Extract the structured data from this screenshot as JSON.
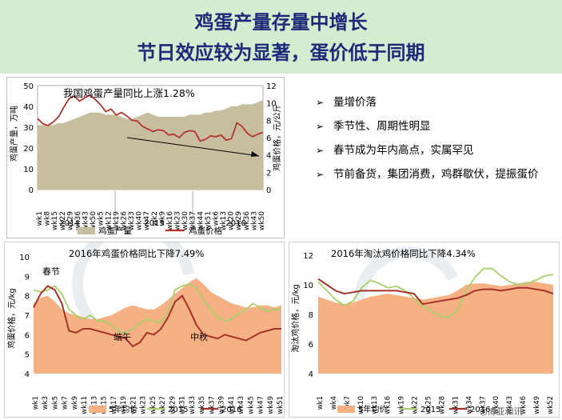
{
  "slide": {
    "title_line1": "鸡蛋产量存量中增长",
    "title_line2": "节日效应较为显著，蛋价低于同期"
  },
  "bullets": [
    "量增价落",
    "季节性、周期性明显",
    "春节成为年内高点，实属罕见",
    "节前备货，集团消费，鸡群歇伏，提振蛋价"
  ],
  "watermark": "博亚和讯",
  "colors": {
    "header_bg": "#d2edcf",
    "title": "#1d2a7a",
    "area_tan": "#c7bea0",
    "price_red": "#b3342d",
    "area_orange": "#f5b183",
    "line_green": "#a9d06b",
    "line_darkred": "#a5322a"
  },
  "chart_data": [
    {
      "type": "area",
      "title": "我国鸡蛋产量同比上涨1.28%",
      "ylabel": "鸡蛋产量，万吨",
      "y2label": "鸡蛋价格，元/公斤",
      "ylim": [
        0,
        50
      ],
      "y2lim": [
        0,
        12
      ],
      "yticks": [
        "0",
        "10",
        "20",
        "30",
        "40",
        "50"
      ],
      "y2ticks": [
        "0",
        "2",
        "4",
        "6",
        "8",
        "10",
        "12"
      ],
      "xticks": [
        "wk1",
        "wk8",
        "wk15",
        "wk22",
        "wk29",
        "wk36",
        "wk43",
        "wk50",
        "wk5",
        "wk12",
        "wk19",
        "wk26",
        "wk33",
        "wk40",
        "wk47",
        "wk2",
        "wk9",
        "wk16",
        "wk23",
        "wk30",
        "wk37",
        "wk44",
        "wk51",
        "wk6",
        "wk13",
        "wk20",
        "wk29",
        "wk36",
        "wk43",
        "wk50"
      ],
      "year_labels": [
        "2014",
        "2015",
        "2016"
      ],
      "legend": [
        "鸡蛋产量",
        "鸡蛋价格"
      ],
      "series": [
        {
          "name": "鸡蛋产量",
          "axis": "left",
          "values": [
            31,
            31,
            31,
            31,
            32,
            32,
            33,
            34,
            35,
            36,
            37,
            37,
            37,
            36,
            36,
            36,
            35,
            34,
            34,
            35,
            36,
            37,
            36,
            35,
            35,
            35,
            35,
            35,
            35,
            36,
            36,
            36,
            37,
            37,
            38,
            38,
            39,
            40,
            40,
            41,
            41,
            41,
            42,
            43
          ]
        },
        {
          "name": "鸡蛋价格",
          "axis": "right",
          "values": [
            8.2,
            7.6,
            7.4,
            7.8,
            8.4,
            9.5,
            10.5,
            10.8,
            10.2,
            10.6,
            10.9,
            10.4,
            9.8,
            9.0,
            9.3,
            8.6,
            8.9,
            8.5,
            8.0,
            7.9,
            7.3,
            7.0,
            6.7,
            6.9,
            6.8,
            6.3,
            6.4,
            6.0,
            6.6,
            6.8,
            6.7,
            5.6,
            5.8,
            6.2,
            6.1,
            6.3,
            5.7,
            5.9,
            7.7,
            7.3,
            6.5,
            6.1,
            6.4,
            6.6
          ]
        }
      ]
    },
    {
      "type": "line",
      "title": "2016年鸡蛋价格同比下降7.49%",
      "ylabel": "鸡蛋价格，元/kg",
      "ylim": [
        4,
        10
      ],
      "yticks": [
        "4",
        "5",
        "6",
        "7",
        "8",
        "9",
        "10"
      ],
      "xticks": [
        "wk1",
        "wk3",
        "wk5",
        "wk7",
        "wk9",
        "wk11",
        "wk13",
        "wk15",
        "wk17",
        "wk19",
        "wk21",
        "wk23",
        "wk25",
        "wk27",
        "wk29",
        "wk31",
        "wk33",
        "wk35",
        "wk37",
        "wk39",
        "wk41",
        "wk43",
        "wk45",
        "wk47",
        "wk49",
        "wk51"
      ],
      "annotations": [
        "春节",
        "端午",
        "中秋"
      ],
      "legend": [
        "5年均价",
        "2015",
        "2016"
      ],
      "series": [
        {
          "name": "5年均价",
          "values": [
            7.6,
            7.9,
            8.0,
            7.7,
            7.3,
            7.1,
            7.0,
            6.9,
            6.8,
            6.8,
            6.9,
            7.0,
            7.2,
            7.4,
            7.5,
            7.4,
            7.3,
            7.3,
            7.5,
            7.8,
            8.1,
            8.4,
            8.7,
            8.9,
            8.6,
            8.2,
            8.0,
            7.8,
            7.6,
            7.5,
            7.4,
            7.4,
            7.5,
            7.5,
            7.4,
            7.5
          ]
        },
        {
          "name": "2015",
          "values": [
            8.3,
            8.2,
            8.3,
            8.5,
            8.1,
            7.3,
            7.0,
            6.8,
            7.0,
            6.7,
            6.7,
            6.5,
            6.2,
            6.1,
            6.3,
            6.6,
            6.8,
            6.7,
            6.6,
            7.2,
            8.3,
            8.5,
            8.6,
            8.4,
            7.8,
            7.3,
            6.9,
            6.7,
            6.8,
            7.1,
            7.3,
            7.6,
            7.4,
            7.2,
            7.3,
            7.3
          ]
        },
        {
          "name": "2016",
          "values": [
            7.4,
            8.1,
            8.5,
            8.3,
            7.6,
            6.2,
            6.1,
            6.3,
            6.3,
            6.2,
            6.1,
            6.0,
            5.9,
            5.8,
            5.4,
            5.6,
            6.1,
            6.0,
            6.3,
            6.9,
            7.7,
            8.0,
            7.3,
            6.5,
            6.0,
            5.9,
            5.8,
            6.0,
            5.9,
            5.8,
            5.7,
            5.9,
            6.1,
            6.2,
            6.3,
            6.3
          ]
        }
      ]
    },
    {
      "type": "line",
      "title": "2016年淘汰鸡价格同比下降4.34%",
      "ylabel": "淘汰鸡价格，元/kg",
      "ylim": [
        4,
        12
      ],
      "yticks": [
        "4",
        "6",
        "8",
        "10",
        "12"
      ],
      "xticks": [
        "wk1",
        "wk4",
        "wk7",
        "wk10",
        "wk13",
        "wk16",
        "wk19",
        "wk22",
        "wk25",
        "wk28",
        "wk31",
        "wk34",
        "wk37",
        "wk40",
        "wk43",
        "wk46",
        "wk49",
        "wk52"
      ],
      "legend": [
        "5年均价",
        "2015",
        "2016"
      ],
      "series": [
        {
          "name": "5年均价",
          "values": [
            9.2,
            9.0,
            8.8,
            8.7,
            8.8,
            9.0,
            9.2,
            9.3,
            9.4,
            9.3,
            9.2,
            9.1,
            9.0,
            9.1,
            9.2,
            9.3,
            9.6,
            10.0,
            10.1,
            10.1,
            10.0,
            9.9,
            10.0,
            10.1,
            10.2,
            10.2,
            10.1,
            10.0
          ]
        },
        {
          "name": "2015",
          "values": [
            10.2,
            9.6,
            9.0,
            8.6,
            8.9,
            9.8,
            10.3,
            10.1,
            9.8,
            9.9,
            9.6,
            9.1,
            8.6,
            8.2,
            7.9,
            7.8,
            8.3,
            9.6,
            10.5,
            11.1,
            11.1,
            10.6,
            10.2,
            10.0,
            10.1,
            10.3,
            10.6,
            10.7
          ]
        },
        {
          "name": "2016",
          "values": [
            10.4,
            10.0,
            9.6,
            9.4,
            9.5,
            9.6,
            9.6,
            9.6,
            9.6,
            9.6,
            9.5,
            9.4,
            8.7,
            8.8,
            8.9,
            9.0,
            9.1,
            9.3,
            9.6,
            9.7,
            9.7,
            9.6,
            9.7,
            9.8,
            9.8,
            9.7,
            9.6,
            9.4
          ]
        }
      ]
    }
  ]
}
